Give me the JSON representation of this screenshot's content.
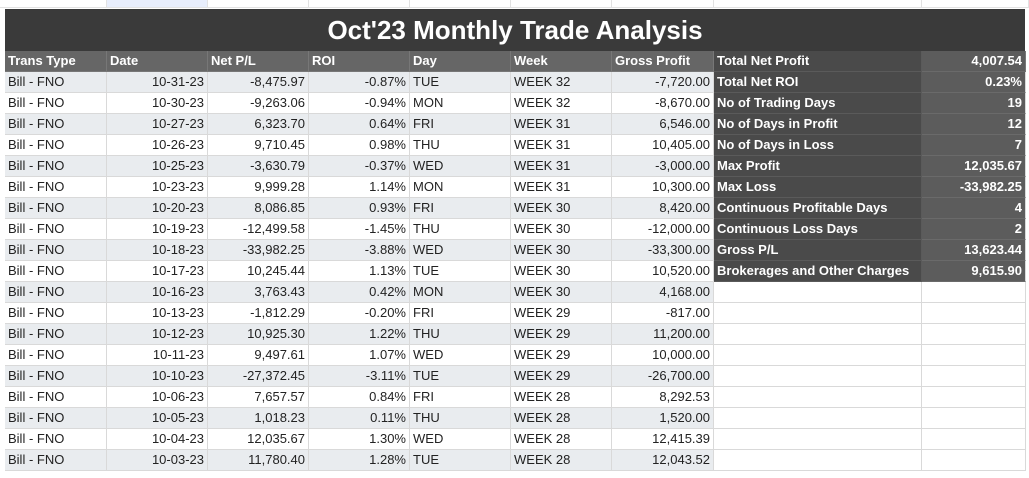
{
  "title": "Oct'23 Monthly Trade Analysis",
  "columns": [
    "Trans Type",
    "Date",
    "Net P/L",
    "ROI",
    "Day",
    "Week",
    "Gross Profit"
  ],
  "rows": [
    {
      "type": "Bill - FNO",
      "date": "10-31-23",
      "netpl": "-8,475.97",
      "roi": "-0.87%",
      "day": "TUE",
      "week": "WEEK 32",
      "gross": "-7,720.00"
    },
    {
      "type": "Bill - FNO",
      "date": "10-30-23",
      "netpl": "-9,263.06",
      "roi": "-0.94%",
      "day": "MON",
      "week": "WEEK 32",
      "gross": "-8,670.00"
    },
    {
      "type": "Bill - FNO",
      "date": "10-27-23",
      "netpl": "6,323.70",
      "roi": "0.64%",
      "day": "FRI",
      "week": "WEEK 31",
      "gross": "6,546.00"
    },
    {
      "type": "Bill - FNO",
      "date": "10-26-23",
      "netpl": "9,710.45",
      "roi": "0.98%",
      "day": "THU",
      "week": "WEEK 31",
      "gross": "10,405.00"
    },
    {
      "type": "Bill - FNO",
      "date": "10-25-23",
      "netpl": "-3,630.79",
      "roi": "-0.37%",
      "day": "WED",
      "week": "WEEK 31",
      "gross": "-3,000.00"
    },
    {
      "type": "Bill - FNO",
      "date": "10-23-23",
      "netpl": "9,999.28",
      "roi": "1.14%",
      "day": "MON",
      "week": "WEEK 31",
      "gross": "10,300.00"
    },
    {
      "type": "Bill - FNO",
      "date": "10-20-23",
      "netpl": "8,086.85",
      "roi": "0.93%",
      "day": "FRI",
      "week": "WEEK 30",
      "gross": "8,420.00"
    },
    {
      "type": "Bill - FNO",
      "date": "10-19-23",
      "netpl": "-12,499.58",
      "roi": "-1.45%",
      "day": "THU",
      "week": "WEEK 30",
      "gross": "-12,000.00"
    },
    {
      "type": "Bill - FNO",
      "date": "10-18-23",
      "netpl": "-33,982.25",
      "roi": "-3.88%",
      "day": "WED",
      "week": "WEEK 30",
      "gross": "-33,300.00"
    },
    {
      "type": "Bill - FNO",
      "date": "10-17-23",
      "netpl": "10,245.44",
      "roi": "1.13%",
      "day": "TUE",
      "week": "WEEK 30",
      "gross": "10,520.00"
    },
    {
      "type": "Bill - FNO",
      "date": "10-16-23",
      "netpl": "3,763.43",
      "roi": "0.42%",
      "day": "MON",
      "week": "WEEK 30",
      "gross": "4,168.00"
    },
    {
      "type": "Bill - FNO",
      "date": "10-13-23",
      "netpl": "-1,812.29",
      "roi": "-0.20%",
      "day": "FRI",
      "week": "WEEK 29",
      "gross": "-817.00"
    },
    {
      "type": "Bill - FNO",
      "date": "10-12-23",
      "netpl": "10,925.30",
      "roi": "1.22%",
      "day": "THU",
      "week": "WEEK 29",
      "gross": "11,200.00"
    },
    {
      "type": "Bill - FNO",
      "date": "10-11-23",
      "netpl": "9,497.61",
      "roi": "1.07%",
      "day": "WED",
      "week": "WEEK 29",
      "gross": "10,000.00"
    },
    {
      "type": "Bill - FNO",
      "date": "10-10-23",
      "netpl": "-27,372.45",
      "roi": "-3.11%",
      "day": "TUE",
      "week": "WEEK 29",
      "gross": "-26,700.00"
    },
    {
      "type": "Bill - FNO",
      "date": "10-06-23",
      "netpl": "7,657.57",
      "roi": "0.84%",
      "day": "FRI",
      "week": "WEEK 28",
      "gross": "8,292.53"
    },
    {
      "type": "Bill - FNO",
      "date": "10-05-23",
      "netpl": "1,018.23",
      "roi": "0.11%",
      "day": "THU",
      "week": "WEEK 28",
      "gross": "1,520.00"
    },
    {
      "type": "Bill - FNO",
      "date": "10-04-23",
      "netpl": "12,035.67",
      "roi": "1.30%",
      "day": "WED",
      "week": "WEEK 28",
      "gross": "12,415.39"
    },
    {
      "type": "Bill - FNO",
      "date": "10-03-23",
      "netpl": "11,780.40",
      "roi": "1.28%",
      "day": "TUE",
      "week": "WEEK 28",
      "gross": "12,043.52"
    }
  ],
  "stats": [
    {
      "label": "Total Net Profit",
      "value": "4,007.54"
    },
    {
      "label": "Total Net ROI",
      "value": "0.23%"
    },
    {
      "label": "No of Trading Days",
      "value": "19"
    },
    {
      "label": "No of Days in Profit",
      "value": "12"
    },
    {
      "label": "No of Days in Loss",
      "value": "7"
    },
    {
      "label": "Max Profit",
      "value": "12,035.67"
    },
    {
      "label": "Max Loss",
      "value": "-33,982.25"
    },
    {
      "label": "Continuous Profitable Days",
      "value": "4"
    },
    {
      "label": "Continuous Loss Days",
      "value": "2"
    },
    {
      "label": "Gross P/L",
      "value": "13,623.44"
    },
    {
      "label": "Brokerages and Other Charges",
      "value": "9,615.90"
    }
  ]
}
